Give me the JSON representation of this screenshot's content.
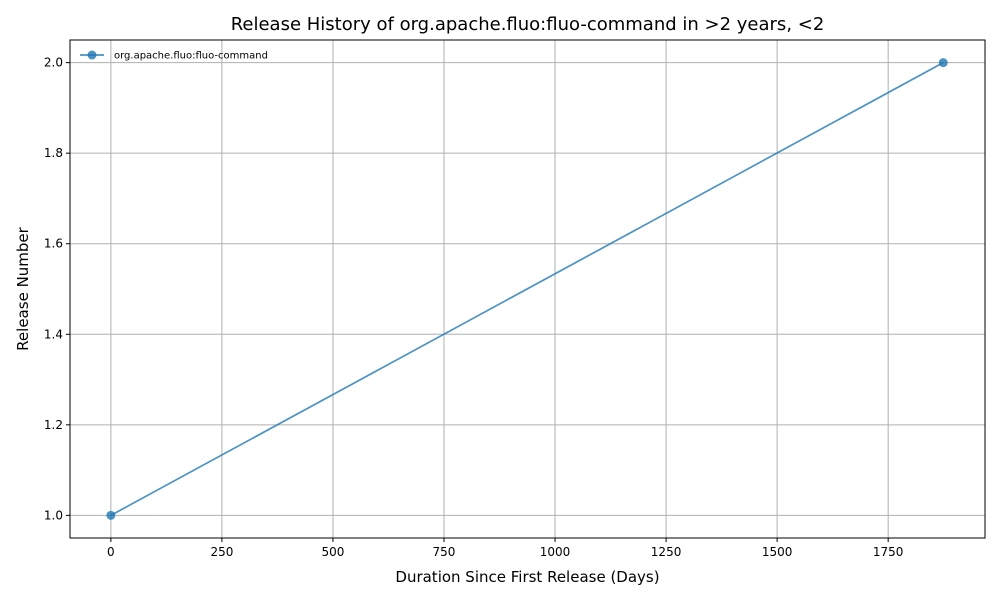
{
  "chart_data": {
    "type": "line",
    "title": "Release History of org.apache.fluo:fluo-command in >2 years, <2",
    "xlabel": "Duration Since First Release (Days)",
    "ylabel": "Release Number",
    "xlim": [
      -92,
      1968
    ],
    "ylim": [
      0.95,
      2.05
    ],
    "xticks": [
      0,
      250,
      500,
      750,
      1000,
      1250,
      1500,
      1750
    ],
    "xtick_labels": [
      "0",
      "250",
      "500",
      "750",
      "1000",
      "1250",
      "1500",
      "1750"
    ],
    "yticks": [
      1.0,
      1.2,
      1.4,
      1.6,
      1.8,
      2.0
    ],
    "ytick_labels": [
      "1.0",
      "1.2",
      "1.4",
      "1.6",
      "1.8",
      "2.0"
    ],
    "grid": true,
    "legend_position": "top-left",
    "series": [
      {
        "name": "org.apache.fluo:fluo-command",
        "color": "#1f77b4",
        "marker": "circle",
        "x": [
          0,
          1874
        ],
        "y": [
          1,
          2
        ]
      }
    ]
  }
}
